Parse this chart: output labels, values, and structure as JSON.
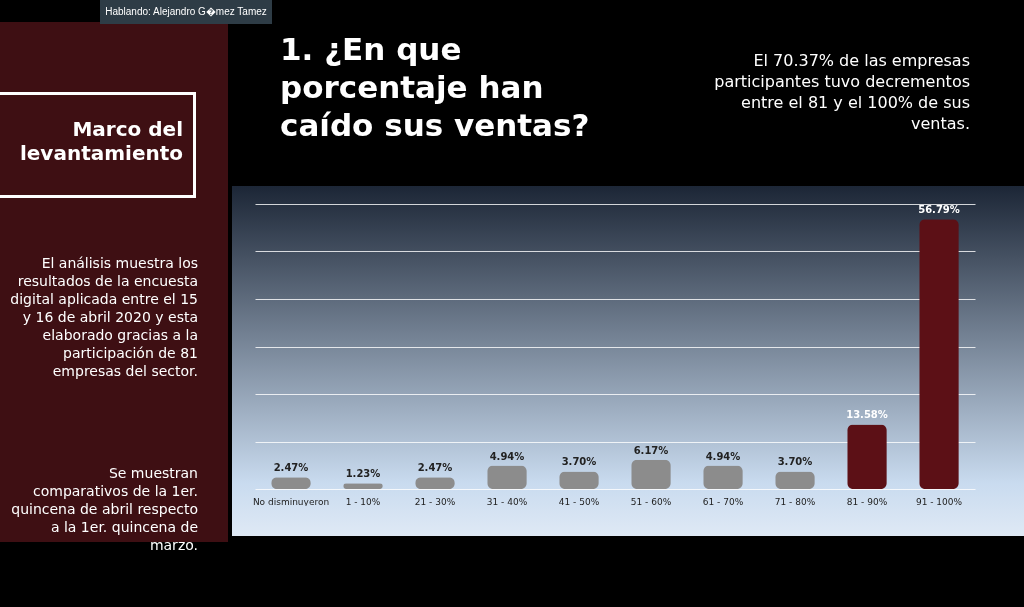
{
  "chart_data": {
    "type": "bar",
    "title": "1. ¿En que porcentaje han caído sus ventas?",
    "categories": [
      "No disminuyeron",
      "1 - 10%",
      "21 - 30%",
      "31 - 40%",
      "41 - 50%",
      "51 - 60%",
      "61 - 70%",
      "71 - 80%",
      "81 - 90%",
      "91 - 100%"
    ],
    "values": [
      2.47,
      1.23,
      2.47,
      4.94,
      3.7,
      6.17,
      4.94,
      3.7,
      13.58,
      56.79
    ],
    "value_labels": [
      "2.47%",
      "1.23%",
      "2.47%",
      "4.94%",
      "3.70%",
      "6.17%",
      "4.94%",
      "3.70%",
      "13.58%",
      "56.79%"
    ],
    "colors": [
      "#8c8c8c",
      "#8c8c8c",
      "#8c8c8c",
      "#8c8c8c",
      "#8c8c8c",
      "#8c8c8c",
      "#8c8c8c",
      "#8c8c8c",
      "#5c1016",
      "#5c1016"
    ],
    "ylim": [
      0,
      60
    ],
    "yticks": [
      {
        "value": 0,
        "label": null
      },
      {
        "value": 10,
        "label": null
      },
      {
        "value": 20,
        "label": null
      },
      {
        "value": 30,
        "label": null
      },
      {
        "value": 40,
        "label": null
      },
      {
        "value": 50,
        "label": null
      },
      {
        "value": 60,
        "label": null
      }
    ],
    "grid": "y",
    "tick_labels": "x",
    "annotations": [
      "Hablando: Alejandro G�mez Tamez",
      "Marco del levantamiento",
      "El análisis muestra los resultados de la encuesta digital aplicada entre el 15 y 16 de abril 2020 y esta elaborado gracias a la participación de 81 empresas del sector.",
      "Se muestran comparativos de la 1er. quincena de abril respecto a la 1er. quincena de marzo.",
      "El 70.37% de las empresas participantes tuvo decrementos entre el 81 y el 100% de sus ventas."
    ]
  }
}
